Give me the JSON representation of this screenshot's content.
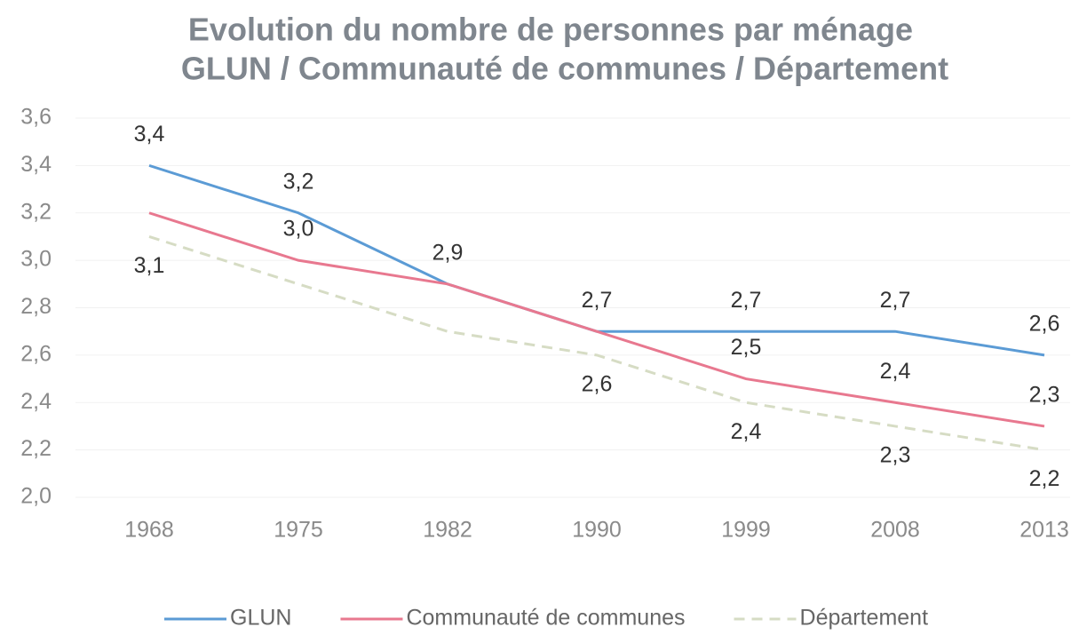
{
  "chart_data": {
    "type": "line",
    "title": "Evolution du nombre de personnes par ménage",
    "subtitle": "GLUN / Communauté de communes / Département",
    "categories": [
      "1968",
      "1975",
      "1982",
      "1990",
      "1999",
      "2008",
      "2013"
    ],
    "series": [
      {
        "name": "GLUN",
        "color": "#5b9bd5",
        "dashed": false,
        "values": [
          3.4,
          3.2,
          2.9,
          2.7,
          2.7,
          2.7,
          2.6
        ],
        "value_labels": [
          "3,4",
          "3,2",
          "2,9",
          "2,7",
          "2,7",
          "2,7",
          "2,6"
        ]
      },
      {
        "name": "Communauté de communes",
        "color": "#e8788f",
        "dashed": false,
        "values": [
          3.2,
          3.0,
          2.9,
          2.7,
          2.5,
          2.4,
          2.3
        ],
        "value_labels": [
          null,
          "3,0",
          null,
          null,
          "2,5",
          "2,4",
          "2,3"
        ]
      },
      {
        "name": "Département",
        "color": "#d6dcc4",
        "dashed": true,
        "values": [
          3.1,
          2.9,
          2.7,
          2.6,
          2.4,
          2.3,
          2.2
        ],
        "value_labels": [
          "3,1",
          null,
          null,
          "2,6",
          "2,4",
          "2,3",
          "2,2"
        ]
      }
    ],
    "ylim": [
      2.0,
      3.6
    ],
    "yticks": [
      {
        "value": 2.0,
        "label": "2,0"
      },
      {
        "value": 2.2,
        "label": "2,2"
      },
      {
        "value": 2.4,
        "label": "2,4"
      },
      {
        "value": 2.6,
        "label": "2,6"
      },
      {
        "value": 2.8,
        "label": "2,8"
      },
      {
        "value": 3.0,
        "label": "3,0"
      },
      {
        "value": 3.2,
        "label": "3,2"
      },
      {
        "value": 3.4,
        "label": "3,4"
      },
      {
        "value": 3.6,
        "label": "3,6"
      }
    ],
    "grid": true,
    "legend": "bottom"
  }
}
